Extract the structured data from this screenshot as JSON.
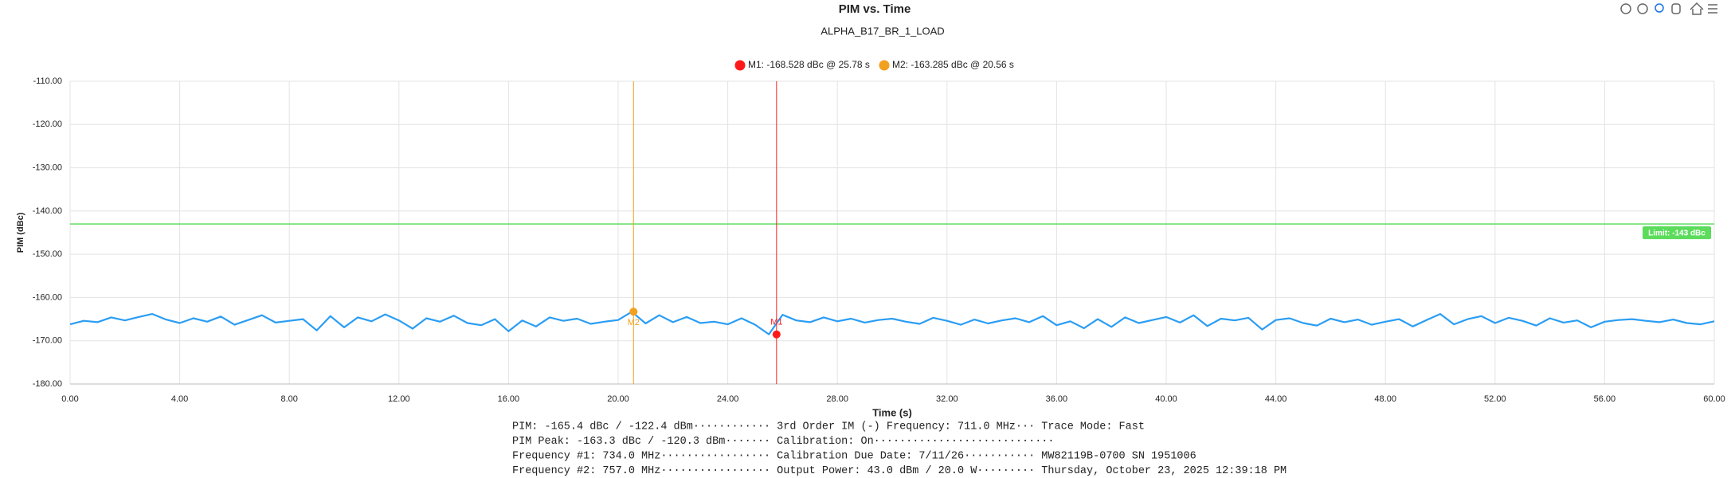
{
  "chart_data": {
    "type": "line",
    "title": "PIM vs. Time",
    "subtitle": "ALPHA_B17_BR_1_LOAD",
    "x_label": "Time (s)",
    "y_label": "PIM (dBc)",
    "xlim": [
      0,
      60
    ],
    "ylim": [
      -180,
      -110
    ],
    "xticks": [
      {
        "value": 0,
        "label": "0.00"
      },
      {
        "value": 4,
        "label": "4.00"
      },
      {
        "value": 8,
        "label": "8.00"
      },
      {
        "value": 12,
        "label": "12.00"
      },
      {
        "value": 16,
        "label": "16.00"
      },
      {
        "value": 20,
        "label": "20.00"
      },
      {
        "value": 24,
        "label": "24.00"
      },
      {
        "value": 28,
        "label": "28.00"
      },
      {
        "value": 32,
        "label": "32.00"
      },
      {
        "value": 36,
        "label": "36.00"
      },
      {
        "value": 40,
        "label": "40.00"
      },
      {
        "value": 44,
        "label": "44.00"
      },
      {
        "value": 48,
        "label": "48.00"
      },
      {
        "value": 52,
        "label": "52.00"
      },
      {
        "value": 56,
        "label": "56.00"
      },
      {
        "value": 60,
        "label": "60.00"
      }
    ],
    "yticks": [
      {
        "value": -110,
        "label": "-110.00"
      },
      {
        "value": -120,
        "label": "-120.00"
      },
      {
        "value": -130,
        "label": "-130.00"
      },
      {
        "value": -140,
        "label": "-140.00"
      },
      {
        "value": -150,
        "label": "-150.00"
      },
      {
        "value": -160,
        "label": "-160.00"
      },
      {
        "value": -170,
        "label": "-170.00"
      },
      {
        "value": -180,
        "label": "-180.00"
      }
    ],
    "grid": true,
    "series": [
      {
        "color": "#2a9df4",
        "x": [
          0,
          0.5,
          1,
          1.5,
          2,
          2.5,
          3,
          3.5,
          4,
          4.5,
          5,
          5.5,
          6,
          6.5,
          7,
          7.5,
          8,
          8.5,
          9,
          9.5,
          10,
          10.5,
          11,
          11.5,
          12,
          12.5,
          13,
          13.5,
          14,
          14.5,
          15,
          15.5,
          16,
          16.5,
          17,
          17.5,
          18,
          18.5,
          19,
          19.5,
          20,
          20.5,
          21,
          21.5,
          22,
          22.5,
          23,
          23.5,
          24,
          24.5,
          25,
          25.5,
          26,
          26.5,
          27,
          27.5,
          28,
          28.5,
          29,
          29.5,
          30,
          30.5,
          31,
          31.5,
          32,
          32.5,
          33,
          33.5,
          34,
          34.5,
          35,
          35.5,
          36,
          36.5,
          37,
          37.5,
          38,
          38.5,
          39,
          39.5,
          40,
          40.5,
          41,
          41.5,
          42,
          42.5,
          43,
          43.5,
          44,
          44.5,
          45,
          45.5,
          46,
          46.5,
          47,
          47.5,
          48,
          48.5,
          49,
          49.5,
          50,
          50.5,
          51,
          51.5,
          52,
          52.5,
          53,
          53.5,
          54,
          54.5,
          55,
          55.5,
          56,
          56.5,
          57,
          57.5,
          58,
          58.5,
          59,
          59.5,
          60
        ],
        "values": [
          -166.2,
          -165.4,
          -165.7,
          -164.6,
          -165.3,
          -164.5,
          -163.8,
          -165.1,
          -165.9,
          -164.8,
          -165.6,
          -164.4,
          -166.3,
          -165.2,
          -164.1,
          -165.8,
          -165.4,
          -165.0,
          -167.6,
          -164.3,
          -166.9,
          -164.6,
          -165.5,
          -163.9,
          -165.3,
          -167.2,
          -164.8,
          -165.6,
          -164.2,
          -165.9,
          -166.4,
          -165.0,
          -167.8,
          -165.3,
          -166.7,
          -164.6,
          -165.4,
          -164.9,
          -166.1,
          -165.6,
          -165.2,
          -163.3,
          -166.0,
          -164.1,
          -165.7,
          -164.5,
          -165.9,
          -165.6,
          -166.2,
          -164.8,
          -166.3,
          -168.5,
          -164.0,
          -165.3,
          -165.7,
          -164.6,
          -165.5,
          -164.9,
          -165.8,
          -165.2,
          -164.9,
          -165.6,
          -166.1,
          -164.7,
          -165.4,
          -166.3,
          -165.1,
          -166.0,
          -165.3,
          -164.8,
          -165.7,
          -164.3,
          -166.4,
          -165.5,
          -167.1,
          -165.0,
          -166.8,
          -164.6,
          -165.9,
          -165.2,
          -164.5,
          -165.8,
          -164.1,
          -166.6,
          -164.9,
          -165.3,
          -164.7,
          -167.4,
          -165.2,
          -164.8,
          -165.9,
          -166.5,
          -164.9,
          -165.7,
          -165.1,
          -166.3,
          -165.6,
          -165.0,
          -166.7,
          -165.2,
          -163.8,
          -166.2,
          -165.0,
          -164.3,
          -165.9,
          -164.7,
          -165.4,
          -166.5,
          -164.8,
          -165.8,
          -165.3,
          -166.9,
          -165.6,
          -165.2,
          -165.0,
          -165.4,
          -165.7,
          -165.1,
          -165.9,
          -166.2,
          -165.5
        ]
      }
    ],
    "markers": [
      {
        "name": "M1",
        "label": "M1: -168.528 dBc @ 25.78 s",
        "x": 25.78,
        "y": -168.528,
        "color": "#ff1a1a"
      },
      {
        "name": "M2",
        "label": "M2: -163.285 dBc @ 20.56 s",
        "x": 20.56,
        "y": -163.285,
        "color": "#f2a01f"
      }
    ],
    "limit": {
      "value": -143,
      "label": "Limit: -143 dBc",
      "color": "#5bdc5b"
    }
  },
  "info": [
    "PIM: -165.4 dBc / -122.4 dBm············ 3rd Order IM (-) Frequency: 711.0 MHz··· Trace Mode: Fast",
    "PIM Peak: -163.3 dBc / -120.3 dBm······· Calibration: On····························",
    "Frequency #1: 734.0 MHz················· Calibration Due Date: 7/11/26··········· MW82119B-0700 SN 1951006",
    "Frequency #2: 757.0 MHz················· Output Power: 43.0 dBm / 20.0 W········· Thursday, October 23, 2025 12:39:18 PM"
  ]
}
